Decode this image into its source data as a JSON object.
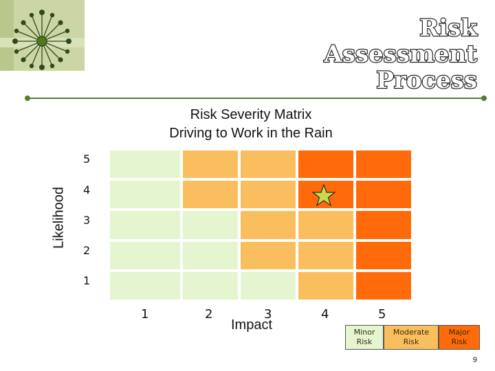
{
  "header": {
    "title_lines": [
      "Risk",
      "Assessment",
      "Process"
    ]
  },
  "matrix": {
    "title_lines": [
      "Risk Severity Matrix",
      "Driving to Work in the Rain"
    ],
    "y_axis_label": "Likelihood",
    "x_axis_label": "Impact",
    "likelihood_levels": [
      "5",
      "4",
      "3",
      "2",
      "1"
    ],
    "impact_levels": [
      "1",
      "2",
      "3",
      "4",
      "5"
    ],
    "risk_grid": [
      [
        "minor",
        "moderate",
        "moderate",
        "major",
        "major"
      ],
      [
        "minor",
        "moderate",
        "moderate",
        "major",
        "major"
      ],
      [
        "minor",
        "minor",
        "moderate",
        "moderate",
        "major"
      ],
      [
        "minor",
        "minor",
        "moderate",
        "moderate",
        "major"
      ],
      [
        "minor",
        "minor",
        "minor",
        "moderate",
        "major"
      ]
    ],
    "marker": {
      "likelihood": 4,
      "impact": 4,
      "icon": "star-icon",
      "color": "#c9d94a"
    }
  },
  "legend": [
    {
      "key": "minor",
      "label_lines": [
        "Minor",
        "Risk"
      ],
      "color": "#e4f5d0"
    },
    {
      "key": "moderate",
      "label_lines": [
        "Moderate",
        "Risk"
      ],
      "color": "#fbbe5e"
    },
    {
      "key": "major",
      "label_lines": [
        "Major",
        "Risk"
      ],
      "color": "#ff6b0a"
    }
  ],
  "colors": {
    "minor": "#e4f5d0",
    "moderate": "#fbbe5e",
    "major": "#ff6b0a",
    "accent": "#5a7a2d"
  },
  "footer": {
    "page_number": "9"
  }
}
